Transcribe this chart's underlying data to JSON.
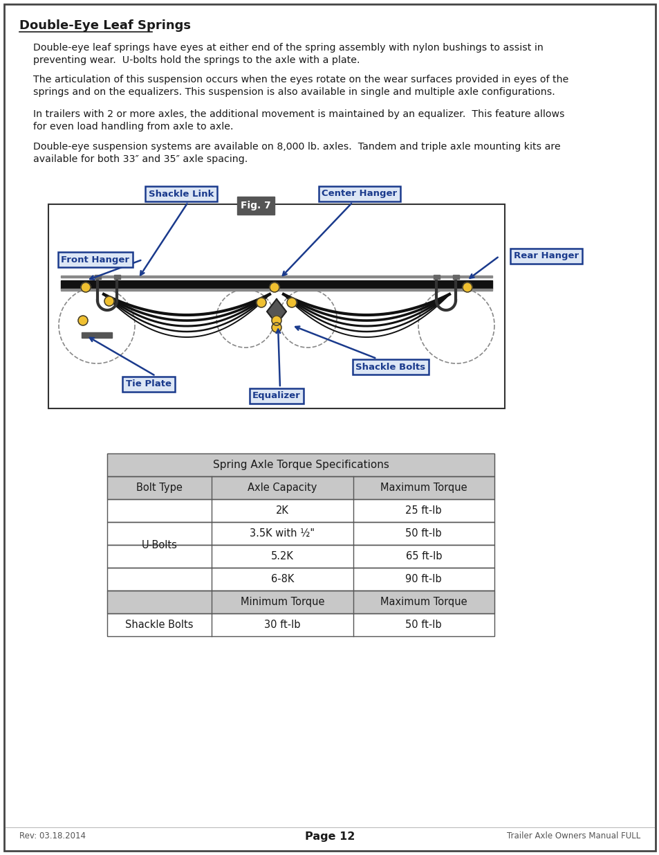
{
  "title": "Double-Eye Leaf Springs",
  "paragraphs": [
    "Double-eye leaf springs have eyes at either end of the spring assembly with nylon bushings to assist in\npreventing wear.  U-bolts hold the springs to the axle with a plate.",
    "The articulation of this suspension occurs when the eyes rotate on the wear surfaces provided in eyes of the\nsprings and on the equalizers. This suspension is also available in single and multiple axle configurations.",
    "In trailers with 2 or more axles, the additional movement is maintained by an equalizer.  This feature allows\nfor even load handling from axle to axle.",
    "Double-eye suspension systems are available on 8,000 lb. axles.  Tandem and triple axle mounting kits are\navailable for both 33″ and 35″ axle spacing."
  ],
  "fig_label": "Fig. 7",
  "labels": {
    "shackle_link": "Shackle Link",
    "center_hanger": "Center Hanger",
    "front_hanger": "Front Hanger",
    "rear_hanger": "Rear Hanger",
    "tie_plate": "Tie Plate",
    "equalizer": "Equalizer",
    "shackle_bolts": "Shackle Bolts"
  },
  "table_title": "Spring Axle Torque Specifications",
  "table_headers": [
    "Bolt Type",
    "Axle Capacity",
    "Maximum Torque"
  ],
  "table_rows": [
    [
      "U-Bolts",
      "2K",
      "25 ft-lb"
    ],
    [
      "",
      "3.5K with ½\"",
      "50 ft-lb"
    ],
    [
      "",
      "5.2K",
      "65 ft-lb"
    ],
    [
      "",
      "6-8K",
      "90 ft-lb"
    ]
  ],
  "table_shackle_header": [
    "",
    "Minimum Torque",
    "Maximum Torque"
  ],
  "table_shackle_row": [
    "Shackle Bolts",
    "30 ft-lb",
    "50 ft-lb"
  ],
  "footer_left": "Rev: 03.18.2014",
  "footer_center": "Page 12",
  "footer_right": "Trailer Axle Owners Manual FULL",
  "bg_color": "#ffffff",
  "blue_label_color": "#1a3a8c",
  "blue_label_bg": "#dce6f5",
  "table_gray": "#c8c8c8",
  "text_color": "#1a1a1a",
  "yellow_dot": "#f0c030",
  "diagram_gray": "#666666",
  "dark_gray": "#222222"
}
